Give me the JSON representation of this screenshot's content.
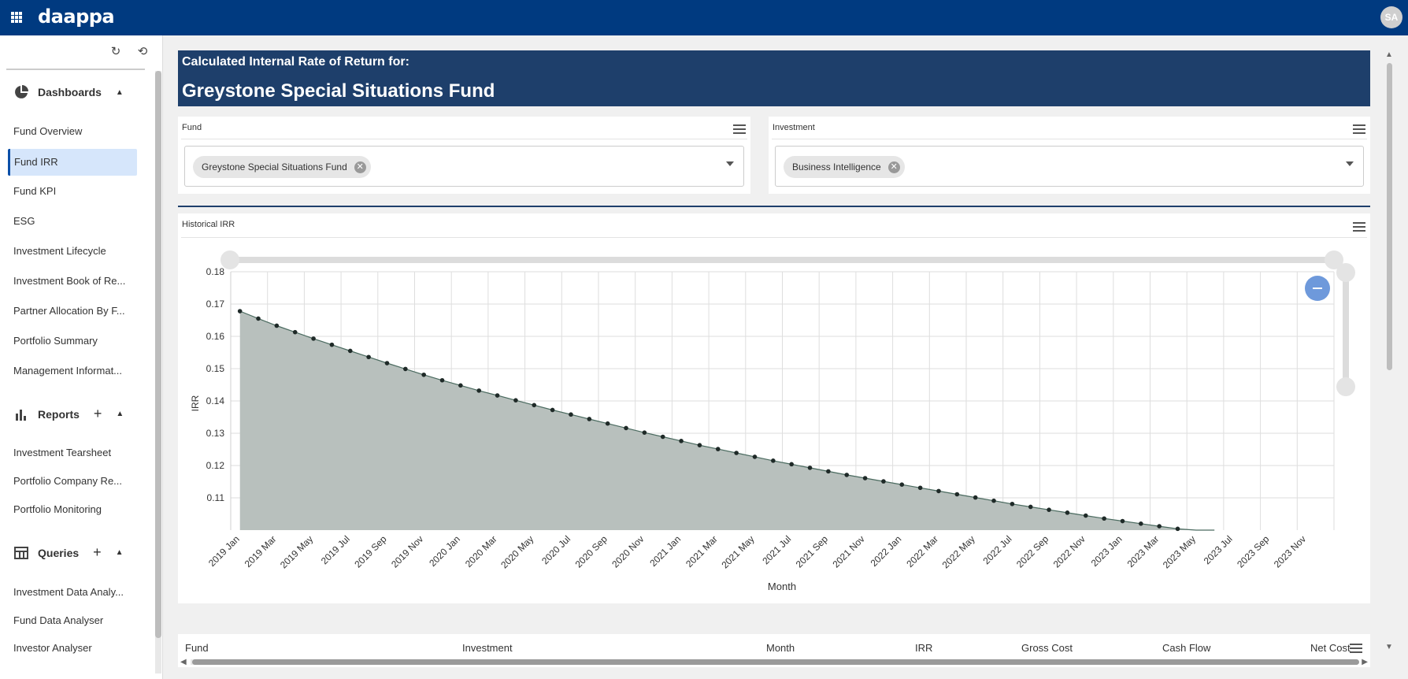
{
  "app": {
    "logo": "daappa",
    "avatar_initials": "SA"
  },
  "sidebar": {
    "sections": [
      {
        "title": "Dashboards",
        "items": [
          "Fund Overview",
          "Fund IRR",
          "Fund KPI",
          "ESG",
          "Investment Lifecycle",
          "Investment Book of Re...",
          "Partner Allocation By F...",
          "Portfolio Summary",
          "Management Informat..."
        ]
      },
      {
        "title": "Reports",
        "items": [
          "Investment Tearsheet",
          "Portfolio Company Re...",
          "Portfolio Monitoring"
        ]
      },
      {
        "title": "Queries",
        "items": [
          "Investment Data Analy...",
          "Fund Data Analyser",
          "Investor Analyser"
        ]
      }
    ],
    "active_item": "Fund IRR"
  },
  "banner": {
    "subtitle": "Calculated Internal Rate of Return for:",
    "title": "Greystone Special Situations Fund"
  },
  "filters": {
    "fund": {
      "label": "Fund",
      "selected": "Greystone Special Situations Fund"
    },
    "investment": {
      "label": "Investment",
      "selected": "Business Intelligence"
    }
  },
  "chart_panel": {
    "title": "Historical IRR"
  },
  "chart_data": {
    "type": "area",
    "title": "",
    "xlabel": "Month",
    "ylabel": "IRR",
    "ylim": [
      0.1,
      0.18
    ],
    "y_ticks": [
      "0.11",
      "0.12",
      "0.13",
      "0.14",
      "0.15",
      "0.16",
      "0.17",
      "0.18"
    ],
    "x_tick_labels": [
      "2019 Jan",
      "2019 Mar",
      "2019 May",
      "2019 Jul",
      "2019 Sep",
      "2019 Nov",
      "2020 Jan",
      "2020 Mar",
      "2020 May",
      "2020 Jul",
      "2020 Sep",
      "2020 Nov",
      "2021 Jan",
      "2021 Mar",
      "2021 May",
      "2021 Jul",
      "2021 Sep",
      "2021 Nov",
      "2022 Jan",
      "2022 Mar",
      "2022 May",
      "2022 Jul",
      "2022 Sep",
      "2022 Nov",
      "2023 Jan",
      "2023 Mar",
      "2023 May",
      "2023 Jul",
      "2023 Sep",
      "2023 Nov"
    ],
    "x_months_range": [
      "2019 Jan",
      "2023 Dec"
    ],
    "series": [
      {
        "start": "2019 Jan",
        "values": [
          0.1678,
          0.1655,
          0.1633,
          0.1613,
          0.1593,
          0.1574,
          0.1555,
          0.1536,
          0.1517,
          0.1499,
          0.1481,
          0.1464,
          0.1448,
          0.1432,
          0.1417,
          0.1402,
          0.1387,
          0.1372,
          0.1358,
          0.1344,
          0.133,
          0.1316,
          0.1302,
          0.1289,
          0.1276,
          0.1263,
          0.1251,
          0.1239,
          0.1227,
          0.1215,
          0.1204,
          0.1193,
          0.1182,
          0.1171,
          0.1161,
          0.1151,
          0.1141,
          0.1131,
          0.1121,
          0.1111,
          0.1101,
          0.1091,
          0.1081,
          0.1072,
          0.1063,
          0.1054,
          0.1045,
          0.1036,
          0.1028,
          0.102,
          0.1012,
          0.1004,
          0.0996,
          0.099
        ]
      }
    ],
    "grid": true,
    "legend": "none"
  },
  "table": {
    "columns": [
      "Fund",
      "Investment",
      "Month",
      "IRR",
      "Gross Cost",
      "Cash Flow",
      "Net Cost"
    ]
  },
  "colors": {
    "topbar": "#003a80",
    "banner": "#1e3f6b",
    "area_fill": "#b8c0bd",
    "line": "#4a6a5f",
    "active_nav": "#d6e6fb"
  }
}
